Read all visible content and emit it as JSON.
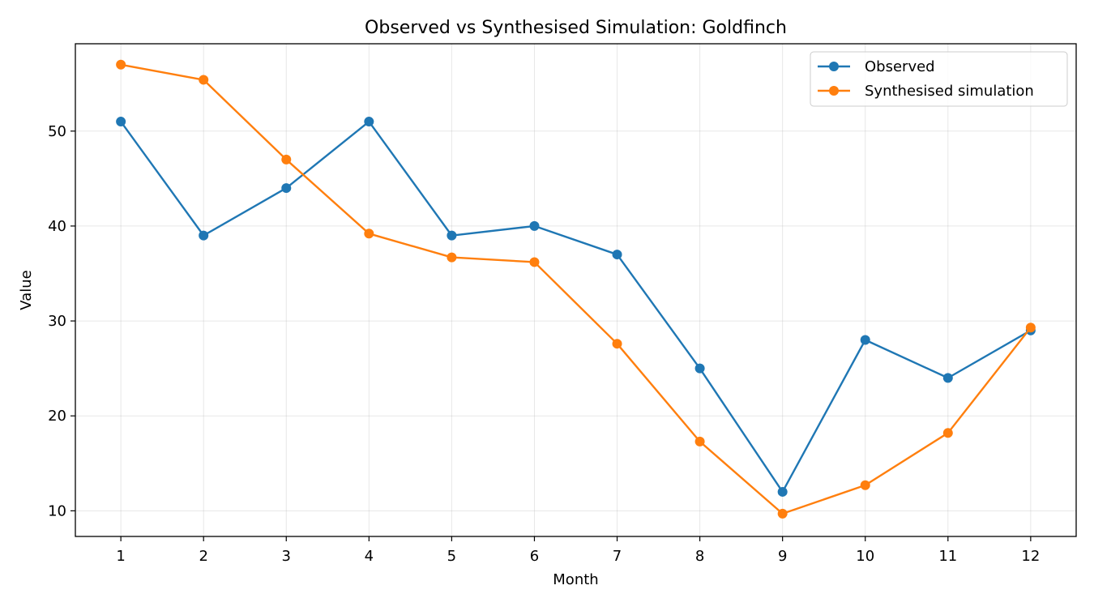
{
  "chart_data": {
    "type": "line",
    "title": "Observed vs Synthesised Simulation: Goldfinch",
    "xlabel": "Month",
    "ylabel": "Value",
    "x": [
      1,
      2,
      3,
      4,
      5,
      6,
      7,
      8,
      9,
      10,
      11,
      12
    ],
    "xticks": [
      "1",
      "2",
      "3",
      "4",
      "5",
      "6",
      "7",
      "8",
      "9",
      "10",
      "11",
      "12"
    ],
    "yticks": [
      "10",
      "20",
      "30",
      "40",
      "50"
    ],
    "xlim": [
      0.45,
      12.55
    ],
    "ylim": [
      7.3,
      59.2
    ],
    "grid": true,
    "legend_position": "top-right",
    "series": [
      {
        "name": "Observed",
        "color": "#1f77b4",
        "marker": "circle",
        "values": [
          51,
          39,
          44,
          51,
          39,
          40,
          37,
          25,
          12,
          28,
          24,
          29
        ]
      },
      {
        "name": "Synthesised simulation",
        "color": "#ff7f0e",
        "marker": "circle",
        "values": [
          57.0,
          55.4,
          47.0,
          39.2,
          36.7,
          36.2,
          27.6,
          17.3,
          9.7,
          12.7,
          18.2,
          29.3
        ]
      }
    ]
  }
}
